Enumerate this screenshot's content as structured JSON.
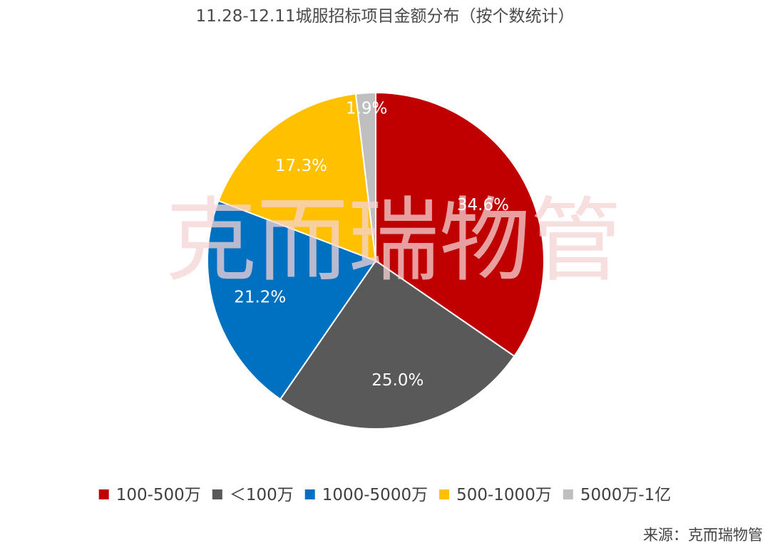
{
  "watermark": "克而瑞物管",
  "source": "来源：克而瑞物管",
  "chart_data": {
    "type": "pie",
    "title": "11.28-12.11城服招标项目金额分布（按个数统计）",
    "categories": [
      "100-500万",
      "＜100万",
      "1000-5000万",
      "500-1000万",
      "5000万-1亿"
    ],
    "values": [
      34.6,
      25.0,
      21.2,
      17.3,
      1.9
    ],
    "labels": [
      "34.6%",
      "25.0%",
      "21.2%",
      "17.3%",
      "1.9%"
    ],
    "colors": [
      "#c00000",
      "#595959",
      "#0070c0",
      "#ffc000",
      "#bfbfbf"
    ],
    "legend_position": "bottom",
    "start_angle": "12 o'clock",
    "direction": "clockwise"
  }
}
